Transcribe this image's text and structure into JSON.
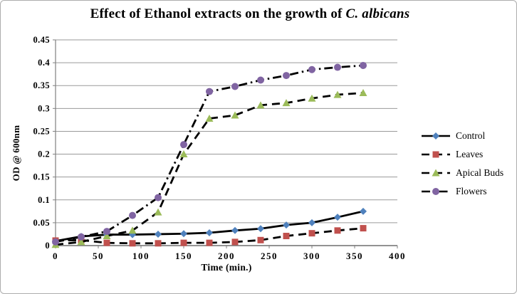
{
  "window": {
    "background": "#ffffff",
    "border_color": "#adadad"
  },
  "title": {
    "prefix": "Effect of Ethanol extracts on the growth of ",
    "species": "C. albicans"
  },
  "axes": {
    "y_title": "OD @ 600nm",
    "x_title": "Time (min.)",
    "y_ticks": [
      "0.45",
      "0.4",
      "0.35",
      "0.3",
      "0.25",
      "0.2",
      "0.15",
      "0.1",
      "0.05",
      "0"
    ],
    "x_ticks": [
      "0",
      "50",
      "100",
      "150",
      "200",
      "250",
      "300",
      "350",
      "400"
    ]
  },
  "chart_data": {
    "type": "line",
    "title": "Effect of Ethanol extracts on the growth of C. albicans",
    "xlabel": "Time (min.)",
    "ylabel": "OD @ 600nm",
    "xlim": [
      0,
      400
    ],
    "ylim": [
      0,
      0.45
    ],
    "x_tick_step": 50,
    "y_tick_step": 0.05,
    "grid": "horizontal-only",
    "gridline_color": "#9a9a9a",
    "axis_color": "#808080",
    "line_color": "#000000",
    "legend_position": "right",
    "x": [
      0,
      30,
      60,
      90,
      120,
      150,
      180,
      210,
      240,
      270,
      300,
      330,
      360
    ],
    "series": [
      {
        "name": "Control",
        "marker": "diamond",
        "color": "#4F81BD",
        "line": "solid",
        "values": [
          0.01,
          0.02,
          0.024,
          0.024,
          0.025,
          0.026,
          0.028,
          0.033,
          0.037,
          0.045,
          0.05,
          0.062,
          0.075
        ]
      },
      {
        "name": "Leaves",
        "marker": "square",
        "color": "#C0504D",
        "line": "dash",
        "values": [
          0.011,
          0.012,
          0.006,
          0.005,
          0.005,
          0.006,
          0.006,
          0.008,
          0.012,
          0.021,
          0.027,
          0.033,
          0.038
        ]
      },
      {
        "name": "Apical Buds",
        "marker": "triangle",
        "color": "#9BBB59",
        "line": "dash",
        "values": [
          0.002,
          0.008,
          0.021,
          0.033,
          0.073,
          0.2,
          0.278,
          0.285,
          0.307,
          0.312,
          0.322,
          0.33,
          0.334
        ]
      },
      {
        "name": "Flowers",
        "marker": "circle",
        "color": "#8064A2",
        "line": "dashdot",
        "values": [
          0.008,
          0.019,
          0.031,
          0.066,
          0.105,
          0.221,
          0.337,
          0.348,
          0.362,
          0.372,
          0.385,
          0.39,
          0.394
        ]
      }
    ]
  }
}
